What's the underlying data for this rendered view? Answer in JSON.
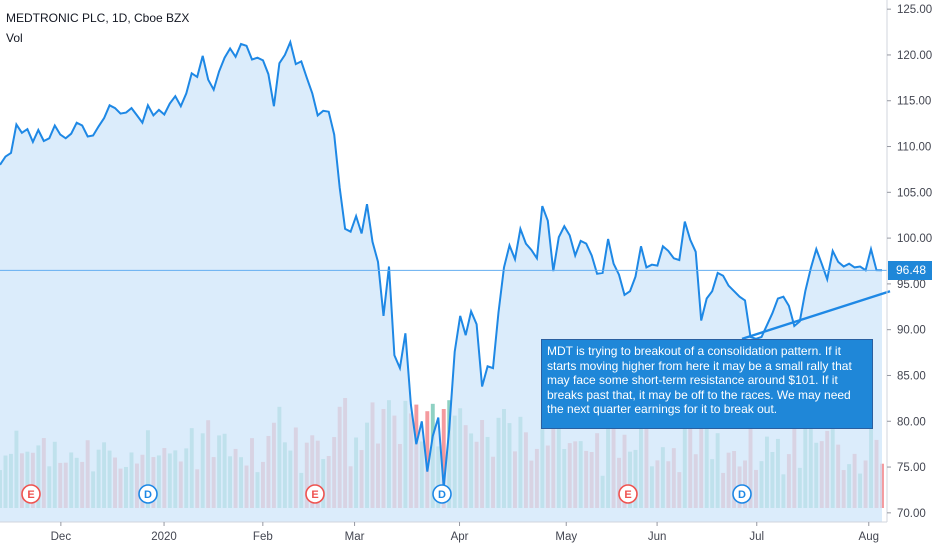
{
  "header": {
    "title": "MEDTRONIC PLC, 1D, Cboe BZX",
    "volume_label": "Vol"
  },
  "last_price": "96.48",
  "annotation": "MDT is trying to breakout of a consolidation pattern.  If it starts moving higher from here it may be a small rally that may face some short-term resistance around $101. If it breaks past that, it may be off to the races. We may need the next quarter earnings for it to break out.",
  "colors": {
    "line": "#1e88e5",
    "area": "#cfe5fa",
    "vol_up": "#8fd1c3",
    "vol_down": "#f49a9e",
    "axis_text": "#434651",
    "grid": "#eceff2",
    "price_line": "#64aef0",
    "event_e": "#ef5350",
    "event_d": "#1e88e5"
  },
  "chart_data": {
    "type": "line",
    "x_axis_labels": [
      "Dec",
      "2020",
      "Feb",
      "Mar",
      "Apr",
      "May",
      "Jun",
      "Jul",
      "Aug"
    ],
    "y_ticks": [
      "125.00",
      "120.00",
      "115.00",
      "110.00",
      "105.00",
      "100.00",
      "95.00",
      "90.00",
      "85.00",
      "80.00",
      "75.00",
      "70.00"
    ],
    "ylim": [
      69,
      126
    ],
    "grid": false,
    "series": [
      {
        "values": [
          108.0,
          108.9,
          109.3,
          112.4,
          111.5,
          111.9,
          110.5,
          111.8,
          110.6,
          110.9,
          112.3,
          111.3,
          110.9,
          111.4,
          112.6,
          112.3,
          111.1,
          111.2,
          112.2,
          113.1,
          114.5,
          114.2,
          113.6,
          113.7,
          114.2,
          113.4,
          112.6,
          114.5,
          113.4,
          114.0,
          113.5,
          114.7,
          115.5,
          114.4,
          115.8,
          118.0,
          117.6,
          119.9,
          117.3,
          116.2,
          118.2,
          119.7,
          120.7,
          119.8,
          121.2,
          121.0,
          119.5,
          119.7,
          119.4,
          117.9,
          114.4,
          119.1,
          120.0,
          121.4,
          119.0,
          119.3,
          117.5,
          115.8,
          113.4,
          113.9,
          113.8,
          111.3,
          105.5,
          101.0,
          100.7,
          102.4,
          100.5,
          103.7,
          99.6,
          97.4,
          91.5,
          96.9,
          87.2,
          85.8,
          89.6,
          81.8,
          77.5,
          80.0,
          74.5,
          78.4,
          80.4,
          72.8,
          79.1,
          87.6,
          91.5,
          89.4,
          92.0,
          90.6,
          83.8,
          86.0,
          85.8,
          91.9,
          96.8,
          99.2,
          97.7,
          101.0,
          99.4,
          98.7,
          97.8,
          103.5,
          101.9,
          96.4,
          100.1,
          101.3,
          100.3,
          98.1,
          99.7,
          99.4,
          98.1,
          96.1,
          96.2,
          99.9,
          97.2,
          96.0,
          93.8,
          94.2,
          95.8,
          99.1,
          96.8,
          97.1,
          97.0,
          99.1,
          98.6,
          97.8,
          97.6,
          101.8,
          99.8,
          98.5,
          91.0,
          93.4,
          94.2,
          96.2,
          95.9,
          94.8,
          94.2,
          93.6,
          93.2,
          89.2,
          89.0,
          89.2,
          90.5,
          91.8,
          93.4,
          93.6,
          92.6,
          90.4,
          90.9,
          94.2,
          96.7,
          98.8,
          97.2,
          95.5,
          98.6,
          97.4,
          96.9,
          97.2,
          96.8,
          96.9,
          96.5,
          98.8,
          96.5,
          96.48
        ]
      }
    ],
    "volume": [],
    "trendline": {
      "from": [
        89.0,
        89.0
      ],
      "to": [
        92.5,
        94.2
      ]
    },
    "events": [
      "E",
      "D",
      "E",
      "D",
      "E",
      "D"
    ]
  }
}
